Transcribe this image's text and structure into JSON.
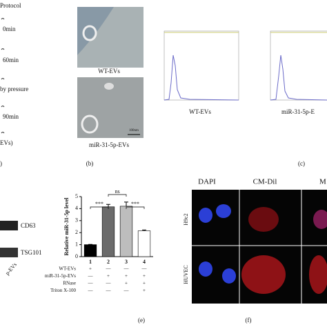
{
  "panel_a": {
    "lines": [
      "Protocol",
      "0min",
      "60min",
      "by pressure",
      "90min",
      "EVs)"
    ],
    "label": ")"
  },
  "panel_b": {
    "captions": [
      "WT-EVs",
      "miR-31-5p-EVs"
    ],
    "scale": "100nm",
    "label": "(b)"
  },
  "panel_c": {
    "captions": [
      "WT-EVs",
      "miR-31-5p-E"
    ],
    "label": "(c)"
  },
  "panel_d": {
    "bands": [
      "CD63",
      "TSG101"
    ],
    "lane": "p-EVs"
  },
  "chart_data": {
    "type": "bar",
    "ylabel": "Relative miR-31-5p level",
    "categories": [
      "1",
      "2",
      "3",
      "4"
    ],
    "values": [
      1.0,
      4.15,
      4.2,
      2.15
    ],
    "errors": [
      0.02,
      0.2,
      0.35,
      0.07
    ],
    "colors": [
      "#000000",
      "#6b6b6b",
      "#bdbdbd",
      "#ffffff"
    ],
    "ylim": [
      0,
      5
    ],
    "yticks": [
      0,
      1,
      2,
      3,
      4,
      5
    ],
    "significance": [
      "***",
      "ns",
      "***"
    ],
    "treatments": [
      {
        "name": "WT-EVs",
        "signs": [
          "+",
          "—",
          "—",
          "—"
        ]
      },
      {
        "name": "miR-31-5p-EVs",
        "signs": [
          "—",
          "+",
          "+",
          "+"
        ]
      },
      {
        "name": "RNase",
        "signs": [
          "—",
          "—",
          "+",
          "+"
        ]
      },
      {
        "name": "Triton X-100",
        "signs": [
          "—",
          "—",
          "—",
          "+"
        ]
      }
    ],
    "label": "(e)"
  },
  "panel_f": {
    "columns": [
      "DAPI",
      "CM-Dil",
      "M"
    ],
    "rows": [
      "H9c2",
      "HUVEC"
    ],
    "label": "(f)"
  }
}
